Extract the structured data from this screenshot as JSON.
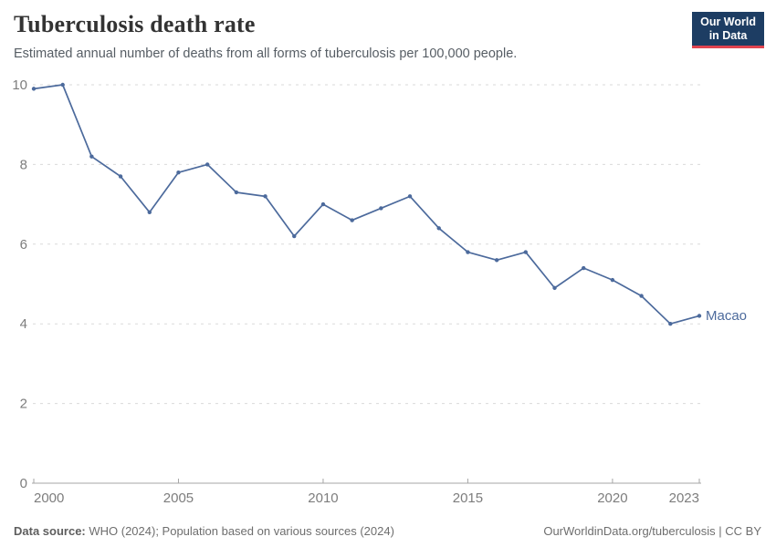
{
  "header": {
    "title": "Tuberculosis death rate",
    "subtitle": "Estimated annual number of deaths from all forms of tuberculosis per 100,000 people.",
    "logo": {
      "line1": "Our World",
      "line2": "in Data"
    }
  },
  "chart_data": {
    "type": "line",
    "title": "Tuberculosis death rate",
    "xlabel": "",
    "ylabel": "",
    "xlim": [
      2000,
      2023
    ],
    "ylim": [
      0,
      10
    ],
    "x_ticks": [
      2000,
      2005,
      2010,
      2015,
      2020,
      2023
    ],
    "y_ticks": [
      0,
      2,
      4,
      6,
      8,
      10
    ],
    "grid": "horizontal-dashed",
    "legend_position": "end-of-line-label",
    "series": [
      {
        "name": "Macao",
        "color": "#4C6A9C",
        "x": [
          2000,
          2001,
          2002,
          2003,
          2004,
          2005,
          2006,
          2007,
          2008,
          2009,
          2010,
          2011,
          2012,
          2013,
          2014,
          2015,
          2016,
          2017,
          2018,
          2019,
          2020,
          2021,
          2022,
          2023
        ],
        "values": [
          9.9,
          10,
          8.2,
          7.7,
          6.8,
          7.8,
          8.0,
          7.3,
          7.2,
          6.2,
          7.0,
          6.6,
          6.9,
          7.2,
          6.4,
          5.8,
          5.6,
          5.8,
          4.9,
          5.4,
          5.1,
          4.7,
          4.0,
          4.2
        ]
      }
    ]
  },
  "footer": {
    "source_label": "Data source:",
    "source_text": " WHO (2024); Population based on various sources (2024)",
    "link_text": "OurWorldinData.org/tuberculosis | CC BY"
  },
  "colors": {
    "series_line": "#4C6A9C",
    "gridline": "#dadada",
    "axis_line": "#a5a5a5",
    "tick_label": "#7d7d7d",
    "title_text": "#333333",
    "subtitle_text": "#565d64",
    "footer_text": "#6e6e6e",
    "logo_background": "#1d3d63",
    "logo_accent": "#e0434f"
  }
}
